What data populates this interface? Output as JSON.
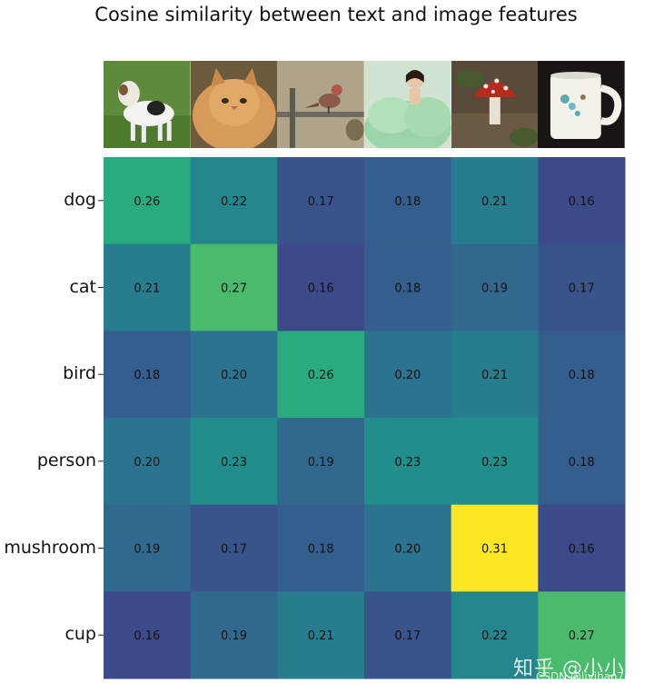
{
  "title": "Cosine similarity between text and image features",
  "images": [
    {
      "name": "dog-photo"
    },
    {
      "name": "cat-photo"
    },
    {
      "name": "bird-photo"
    },
    {
      "name": "person-photo"
    },
    {
      "name": "mushroom-photo"
    },
    {
      "name": "cup-photo"
    }
  ],
  "chart_data": {
    "type": "heatmap",
    "title": "Cosine similarity between text and image features",
    "rows": [
      "dog",
      "cat",
      "bird",
      "person",
      "mushroom",
      "cup"
    ],
    "columns": [
      "dog-image",
      "cat-image",
      "bird-image",
      "person-image",
      "mushroom-image",
      "cup-image"
    ],
    "values": [
      [
        0.26,
        0.22,
        0.17,
        0.18,
        0.21,
        0.16
      ],
      [
        0.21,
        0.27,
        0.16,
        0.18,
        0.19,
        0.17
      ],
      [
        0.18,
        0.2,
        0.26,
        0.2,
        0.21,
        0.18
      ],
      [
        0.2,
        0.23,
        0.19,
        0.23,
        0.23,
        0.18
      ],
      [
        0.19,
        0.17,
        0.18,
        0.2,
        0.31,
        0.16
      ],
      [
        0.16,
        0.19,
        0.21,
        0.17,
        0.22,
        0.27
      ]
    ],
    "colormap": "viridis",
    "vmin": 0.1,
    "vmax": 0.31
  },
  "watermark": "知乎 @小小将",
  "csdn_mark": "CSDN @liyihao76"
}
